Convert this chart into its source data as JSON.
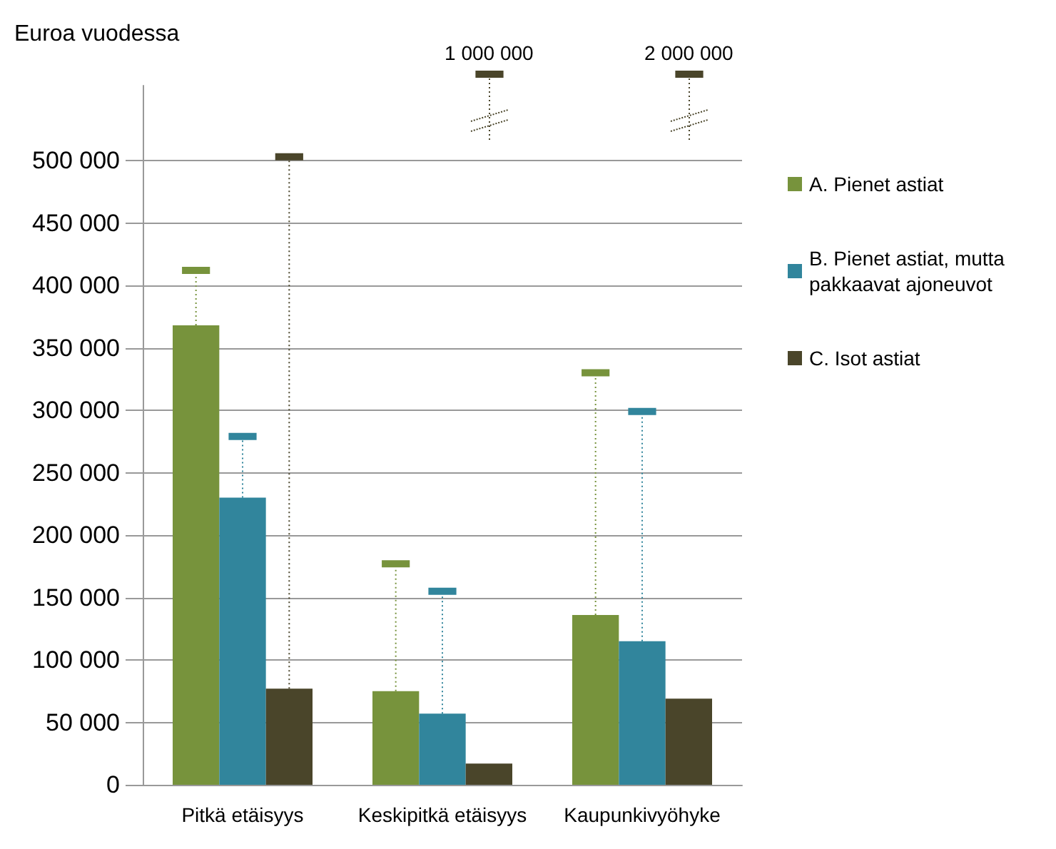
{
  "chart_data": {
    "type": "bar",
    "ylabel": "Euroa vuodessa",
    "categories": [
      "Pitkä etäisyys",
      "Keskipitkä etäisyys",
      "Kaupunkivyöhyke"
    ],
    "series": [
      {
        "name": "A. Pienet astiat",
        "color": "#77933c",
        "values": [
          368000,
          75000,
          136000
        ],
        "errors": [
          [
            368000,
            412000
          ],
          [
            75000,
            177000
          ],
          [
            136000,
            330000
          ]
        ]
      },
      {
        "name": "B. Pienet astiat, mutta pakkaavat ajoneuvot",
        "color": "#31859c",
        "values": [
          230000,
          57000,
          115000
        ],
        "errors": [
          [
            230000,
            279000
          ],
          [
            57000,
            155000
          ],
          [
            115000,
            299000
          ]
        ]
      },
      {
        "name": "C. Isot astiat",
        "color": "#4a452a",
        "values": [
          77000,
          17000,
          69000
        ],
        "errors": [
          [
            77000,
            503000
          ],
          null,
          null
        ]
      }
    ],
    "annotations": [
      "1 000 000",
      "2 000 000"
    ],
    "ylim": [
      0,
      560000
    ],
    "yticks": [
      {
        "value": 0,
        "label": "0"
      },
      {
        "value": 50000,
        "label": "50 000"
      },
      {
        "value": 100000,
        "label": "100 000"
      },
      {
        "value": 150000,
        "label": "150 000"
      },
      {
        "value": 200000,
        "label": "200 000"
      },
      {
        "value": 250000,
        "label": "250 000"
      },
      {
        "value": 300000,
        "label": "300 000"
      },
      {
        "value": 350000,
        "label": "350 000"
      },
      {
        "value": 400000,
        "label": "400 000"
      },
      {
        "value": 450000,
        "label": "450 000"
      },
      {
        "value": 500000,
        "label": "500 000"
      }
    ],
    "grid": "y",
    "legend": "right"
  }
}
